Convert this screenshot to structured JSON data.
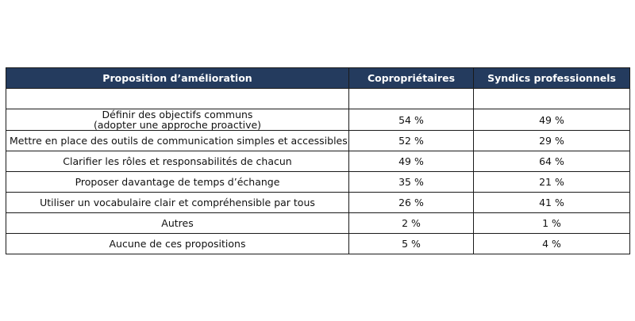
{
  "chart_data": {
    "type": "table",
    "columns": [
      "Proposition d’amélioration",
      "Copropriétaires",
      "Syndics professionnels"
    ],
    "rows": [
      {
        "label_lines": [
          "",
          ""
        ],
        "values": [
          "",
          ""
        ]
      },
      {
        "label_lines": [
          "Définir des objectifs communs",
          "(adopter une approche proactive)"
        ],
        "values": [
          "54 %",
          "49 %"
        ]
      },
      {
        "label_lines": [
          "Mettre en place des outils de communication simples et accessibles",
          ""
        ],
        "values": [
          "52 %",
          "29 %"
        ]
      },
      {
        "label_lines": [
          "Clarifier les rôles et responsabilités de chacun",
          ""
        ],
        "values": [
          "49 %",
          "64 %"
        ]
      },
      {
        "label_lines": [
          "Proposer davantage de temps d’échange",
          ""
        ],
        "values": [
          "35 %",
          "21 %"
        ]
      },
      {
        "label_lines": [
          "Utiliser un vocabulaire clair et compréhensible par tous",
          ""
        ],
        "values": [
          "26 %",
          "41 %"
        ]
      },
      {
        "label_lines": [
          "Autres",
          ""
        ],
        "values": [
          "2 %",
          "1 %"
        ]
      },
      {
        "label_lines": [
          "Aucune de ces propositions",
          ""
        ],
        "values": [
          "5 %",
          "4 %"
        ]
      }
    ],
    "header_color": "#243b5e"
  }
}
